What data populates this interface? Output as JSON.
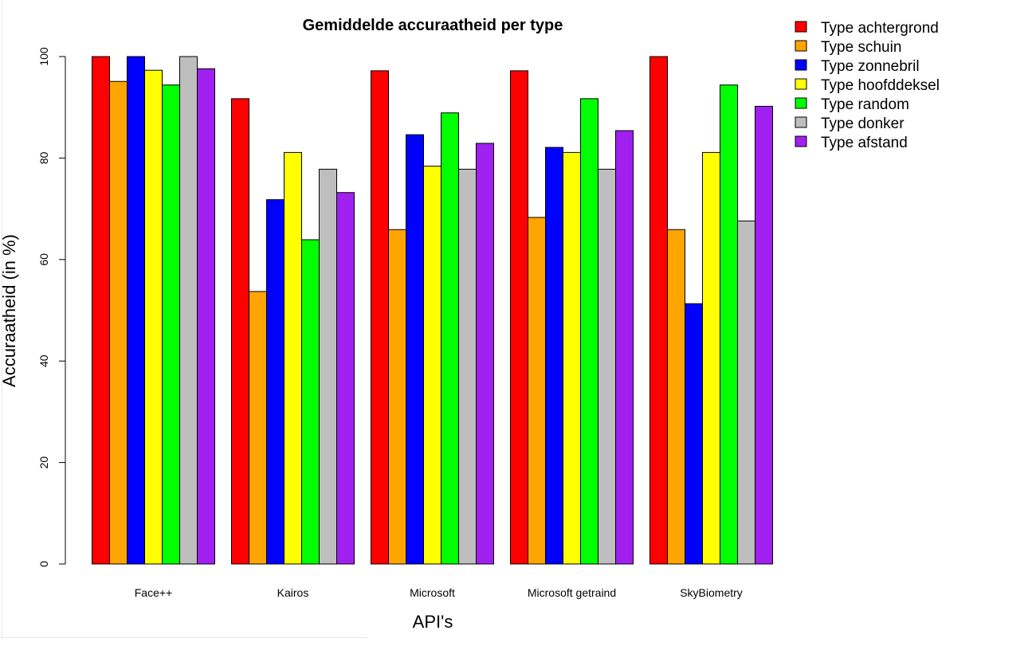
{
  "chart_data": {
    "type": "bar",
    "title": "Gemiddelde accuraatheid per type",
    "xlabel": "API's",
    "ylabel": "Accuraatheid (in %)",
    "ylim": [
      0,
      100
    ],
    "yticks": [
      0,
      20,
      40,
      60,
      80,
      100
    ],
    "grid": false,
    "legend_position": "top-right",
    "categories": [
      "Face++",
      "Kairos",
      "Microsoft",
      "Microsoft getraind",
      "SkyBiometry"
    ],
    "series": [
      {
        "name": "Type achtergrond",
        "color": "#ff0000",
        "values": [
          100,
          91.7,
          97.2,
          97.2,
          100
        ]
      },
      {
        "name": "Type schuin",
        "color": "#ffa500",
        "values": [
          95.1,
          53.7,
          65.9,
          68.3,
          65.9
        ]
      },
      {
        "name": "Type zonnebril",
        "color": "#0000ff",
        "values": [
          100,
          71.8,
          84.6,
          82.1,
          51.3
        ]
      },
      {
        "name": "Type hoofddeksel",
        "color": "#ffff00",
        "values": [
          97.3,
          81.1,
          78.4,
          81.1,
          81.1
        ]
      },
      {
        "name": "Type random",
        "color": "#00ff00",
        "values": [
          94.4,
          63.9,
          88.9,
          91.7,
          94.4
        ]
      },
      {
        "name": "Type donker",
        "color": "#bebebe",
        "values": [
          100,
          77.8,
          77.8,
          77.8,
          67.6
        ]
      },
      {
        "name": "Type afstand",
        "color": "#a020f0",
        "values": [
          97.6,
          73.2,
          82.9,
          85.4,
          90.2
        ]
      }
    ]
  }
}
